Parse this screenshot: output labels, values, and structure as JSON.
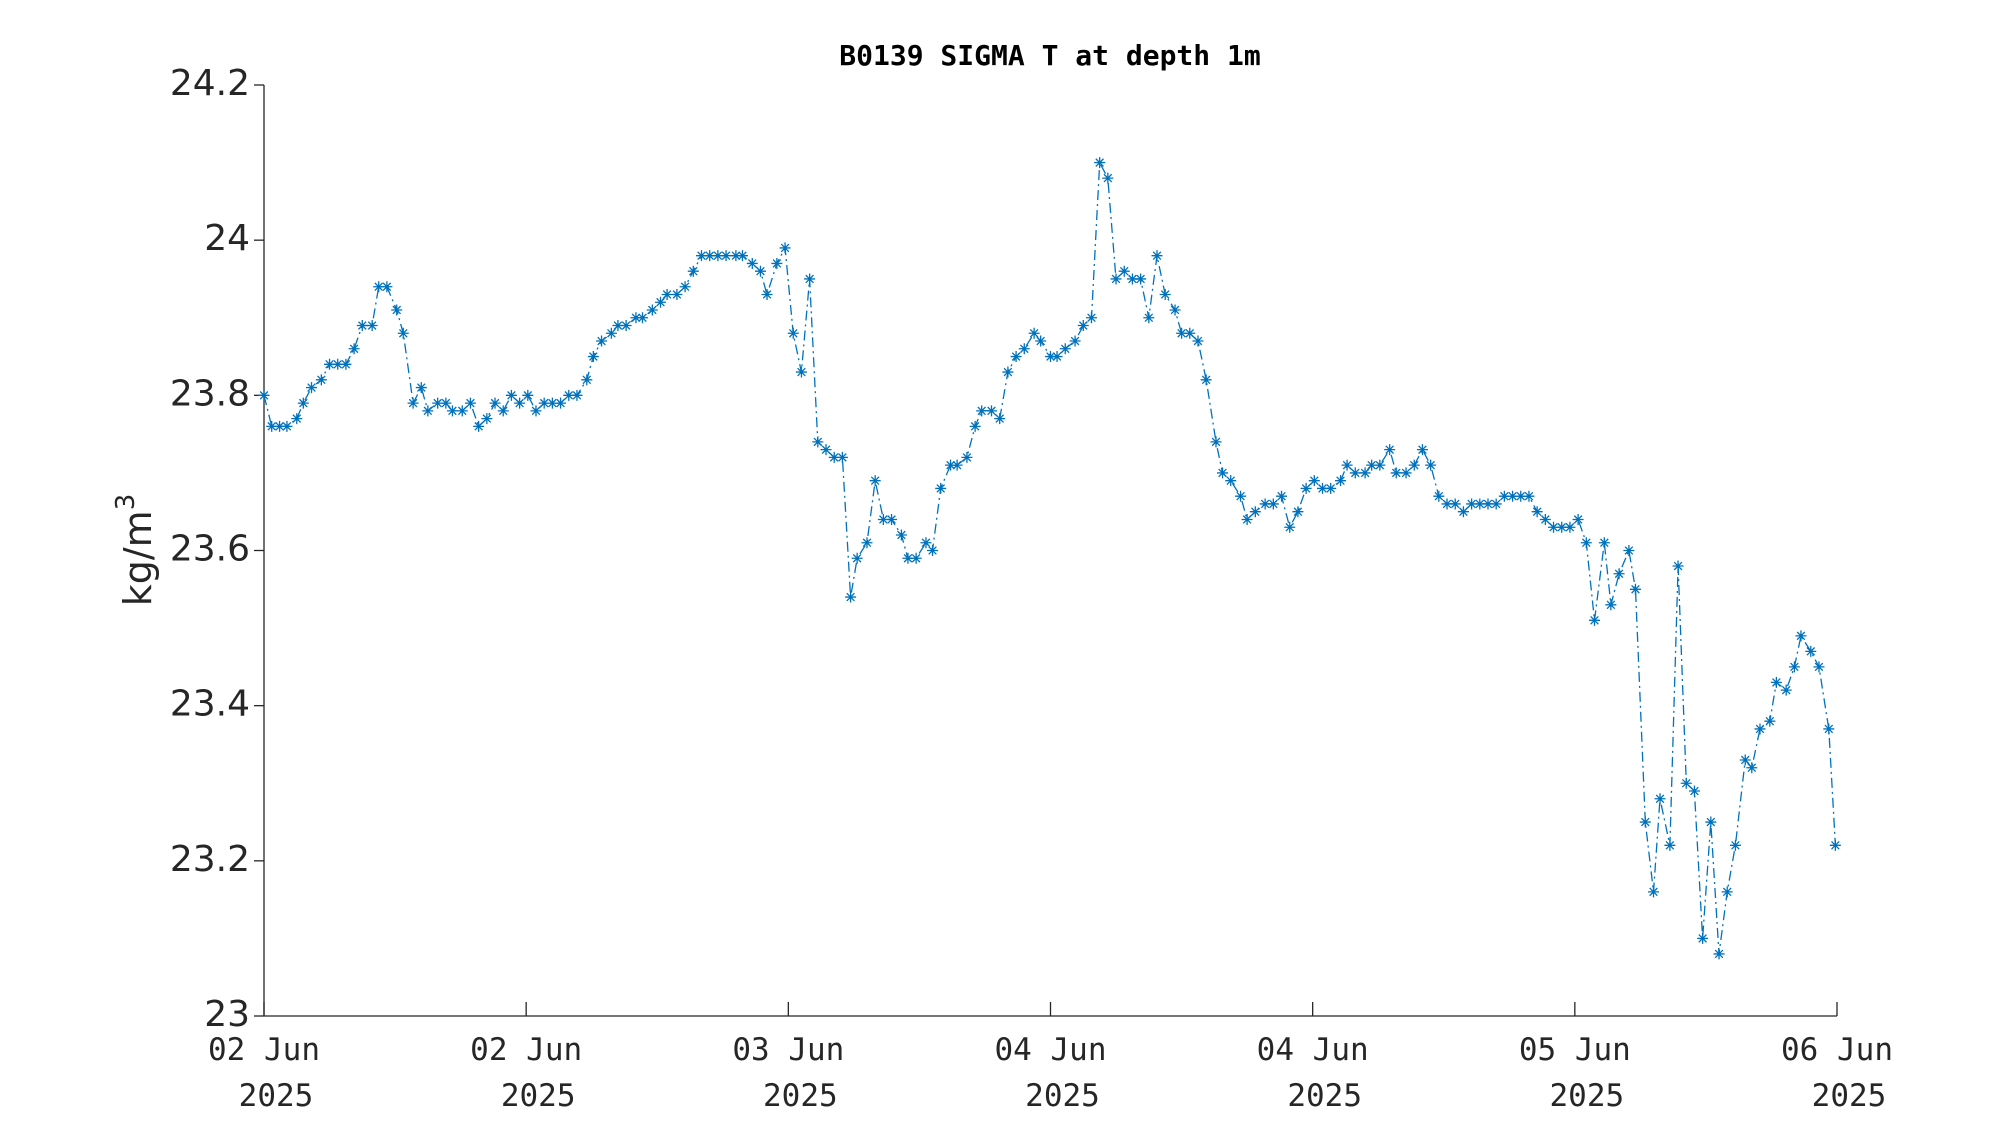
{
  "chart_data": {
    "type": "line",
    "title": "B0139 SIGMA T at depth 1m",
    "ylabel": "kg/m³",
    "color": "#0072bd",
    "line_style": "dash-dot",
    "marker": "asterisk",
    "x": [
      0,
      0.47,
      0.95,
      1.4,
      2.0,
      2.4,
      2.9,
      3.5,
      4.0,
      4.5,
      5.0,
      5.5,
      6.0,
      6.6,
      7.0,
      7.5,
      8.1,
      8.5,
      9.1,
      9.6,
      10.0,
      10.6,
      11.1,
      11.5,
      12.1,
      12.6,
      13.1,
      13.6,
      14.1,
      14.6,
      15.1,
      15.6,
      16.1,
      16.6,
      17.1,
      17.6,
      18.1,
      18.6,
      19.1,
      19.7,
      20.1,
      20.6,
      21.2,
      21.6,
      22.1,
      22.7,
      23.1,
      23.7,
      24.2,
      24.6,
      25.2,
      25.7,
      26.2,
      26.7,
      27.2,
      27.7,
      28.2,
      28.8,
      29.2,
      29.8,
      30.3,
      30.7,
      31.3,
      31.8,
      32.3,
      32.8,
      33.3,
      33.8,
      34.3,
      34.8,
      35.3,
      35.8,
      36.2,
      36.8,
      37.3,
      37.8,
      38.3,
      38.9,
      39.3,
      39.8,
      40.4,
      40.8,
      41.3,
      41.9,
      42.3,
      42.9,
      43.4,
      43.8,
      44.4,
      44.9,
      45.4,
      45.9,
      46.4,
      47.0,
      47.4,
      48.0,
      48.4,
      48.9,
      49.5,
      50.0,
      50.5,
      51.0,
      51.5,
      52.0,
      52.5,
      53.0,
      53.5,
      54.0,
      54.5,
      55.0,
      55.6,
      56.0,
      56.5,
      57.0,
      57.5,
      58.1,
      58.5,
      59.0,
      59.6,
      60.0,
      60.5,
      61.1,
      61.6,
      62.1,
      62.6,
      63.1,
      63.6,
      64.1,
      64.6,
      65.1,
      65.7,
      66.1,
      66.6,
      67.2,
      67.6,
      68.1,
      68.7,
      69.1,
      69.7,
      70.2,
      70.7,
      71.2,
      71.7,
      72.2,
      72.7,
      73.2,
      73.7,
      74.2,
      74.7,
      75.2,
      75.7,
      76.2,
      76.7,
      77.2,
      77.7,
      78.2,
      78.7,
      79.2,
      79.7,
      80.2,
      80.7,
      81.2,
      81.8,
      82.2,
      82.7,
      83.3,
      83.7,
      84.3,
      84.8,
      85.2,
      85.8,
      86.3,
      86.8,
      87.3,
      87.8,
      88.3,
      88.8,
      89.3,
      89.8,
      90.4,
      90.8,
      91.3,
      91.9,
      92.3,
      92.9,
      93.4,
      93.8,
      94.4,
      94.9,
      95.5,
      95.9
    ],
    "values": [
      23.8,
      23.76,
      23.76,
      23.76,
      23.77,
      23.79,
      23.81,
      23.82,
      23.84,
      23.84,
      23.84,
      23.86,
      23.89,
      23.89,
      23.94,
      23.94,
      23.91,
      23.88,
      23.79,
      23.81,
      23.78,
      23.79,
      23.79,
      23.78,
      23.78,
      23.79,
      23.76,
      23.77,
      23.79,
      23.78,
      23.8,
      23.79,
      23.8,
      23.78,
      23.79,
      23.79,
      23.79,
      23.8,
      23.8,
      23.82,
      23.85,
      23.87,
      23.88,
      23.89,
      23.89,
      23.9,
      23.9,
      23.91,
      23.92,
      23.93,
      23.93,
      23.94,
      23.96,
      23.98,
      23.98,
      23.98,
      23.98,
      23.98,
      23.98,
      23.97,
      23.96,
      23.93,
      23.97,
      23.99,
      23.88,
      23.83,
      23.95,
      23.74,
      23.73,
      23.72,
      23.72,
      23.54,
      23.59,
      23.61,
      23.69,
      23.64,
      23.64,
      23.62,
      23.59,
      23.59,
      23.61,
      23.6,
      23.68,
      23.71,
      23.71,
      23.72,
      23.76,
      23.78,
      23.78,
      23.77,
      23.83,
      23.85,
      23.86,
      23.88,
      23.87,
      23.85,
      23.85,
      23.86,
      23.87,
      23.89,
      23.9,
      24.1,
      24.08,
      23.95,
      23.96,
      23.95,
      23.95,
      23.9,
      23.98,
      23.93,
      23.91,
      23.88,
      23.88,
      23.87,
      23.82,
      23.74,
      23.7,
      23.69,
      23.67,
      23.64,
      23.65,
      23.66,
      23.66,
      23.67,
      23.63,
      23.65,
      23.68,
      23.69,
      23.68,
      23.68,
      23.69,
      23.71,
      23.7,
      23.7,
      23.71,
      23.71,
      23.73,
      23.7,
      23.7,
      23.71,
      23.73,
      23.71,
      23.67,
      23.66,
      23.66,
      23.65,
      23.66,
      23.66,
      23.66,
      23.66,
      23.67,
      23.67,
      23.67,
      23.67,
      23.65,
      23.64,
      23.63,
      23.63,
      23.63,
      23.64,
      23.61,
      23.51,
      23.61,
      23.53,
      23.57,
      23.6,
      23.55,
      23.25,
      23.16,
      23.28,
      23.22,
      23.58,
      23.3,
      23.29,
      23.1,
      23.25,
      23.08,
      23.16,
      23.22,
      23.33,
      23.32,
      23.37,
      23.38,
      23.43,
      23.42,
      23.45,
      23.49,
      23.47,
      23.45,
      23.37,
      23.22
    ],
    "xlim": [
      0,
      96
    ],
    "xticks": [
      {
        "value": 0,
        "label": "02 Jun 2025"
      },
      {
        "value": 16,
        "label": "02 Jun 2025"
      },
      {
        "value": 32,
        "label": "03 Jun 2025"
      },
      {
        "value": 48,
        "label": "04 Jun 2025"
      },
      {
        "value": 64,
        "label": "04 Jun 2025"
      },
      {
        "value": 80,
        "label": "05 Jun 2025"
      },
      {
        "value": 96,
        "label": "06 Jun 2025"
      }
    ],
    "ylim": [
      23,
      24.2
    ],
    "yticks": [
      23,
      23.2,
      23.4,
      23.6,
      23.8,
      24,
      24.2
    ],
    "grid": false
  }
}
